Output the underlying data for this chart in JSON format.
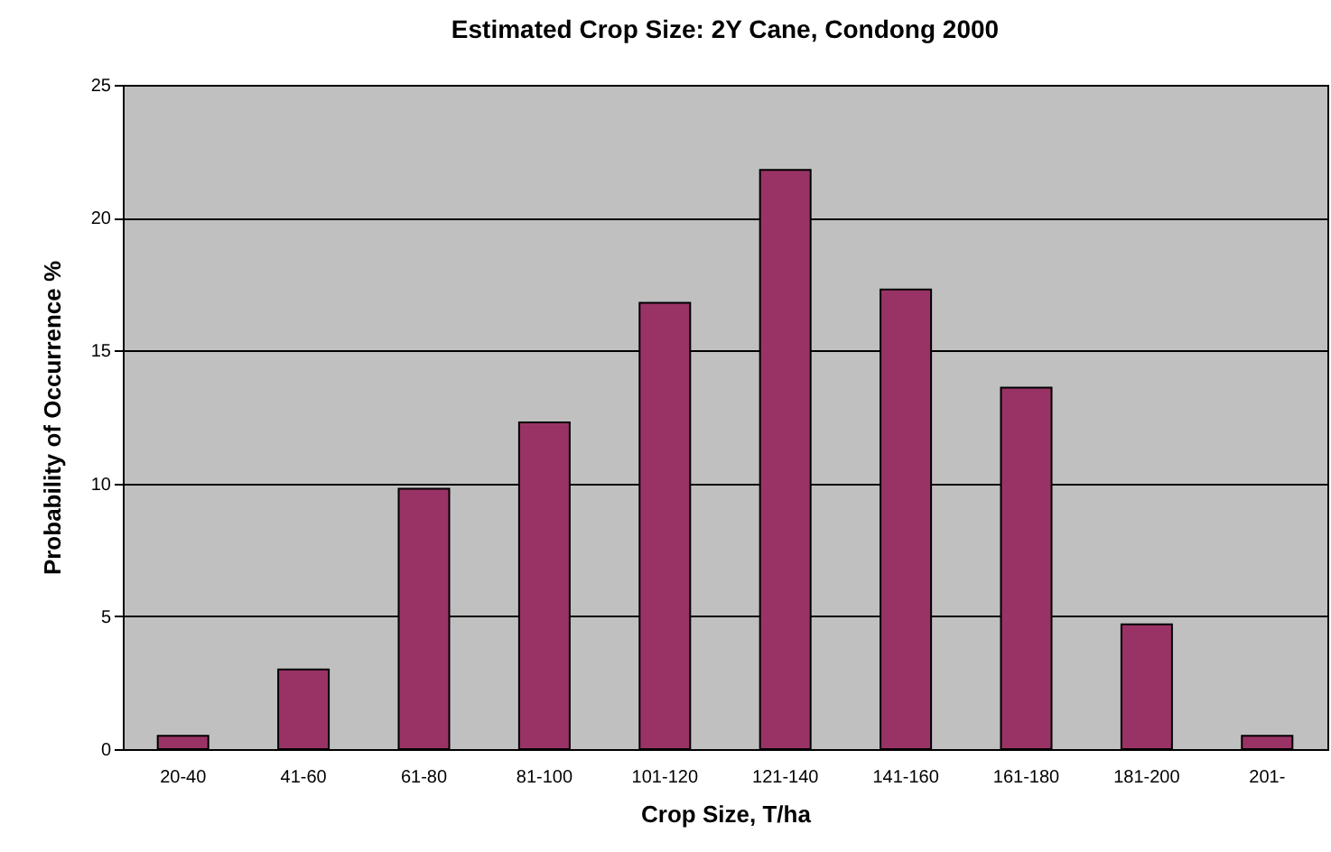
{
  "chart_data": {
    "type": "bar",
    "title": "Estimated Crop Size: 2Y Cane, Condong 2000",
    "xlabel": "Crop Size, T/ha",
    "ylabel": "Probability of Occurrence %",
    "categories": [
      "20-40",
      "41-60",
      "61-80",
      "81-100",
      "101-120",
      "121-140",
      "141-160",
      "161-180",
      "181-200",
      "201-"
    ],
    "values": [
      0.5,
      3.0,
      9.8,
      12.3,
      16.8,
      21.8,
      17.3,
      13.6,
      4.7,
      0.5
    ],
    "color": "#993366",
    "ylim": [
      0,
      25
    ],
    "yticks": [
      0,
      5,
      10,
      15,
      20,
      25
    ],
    "grid": "y"
  }
}
